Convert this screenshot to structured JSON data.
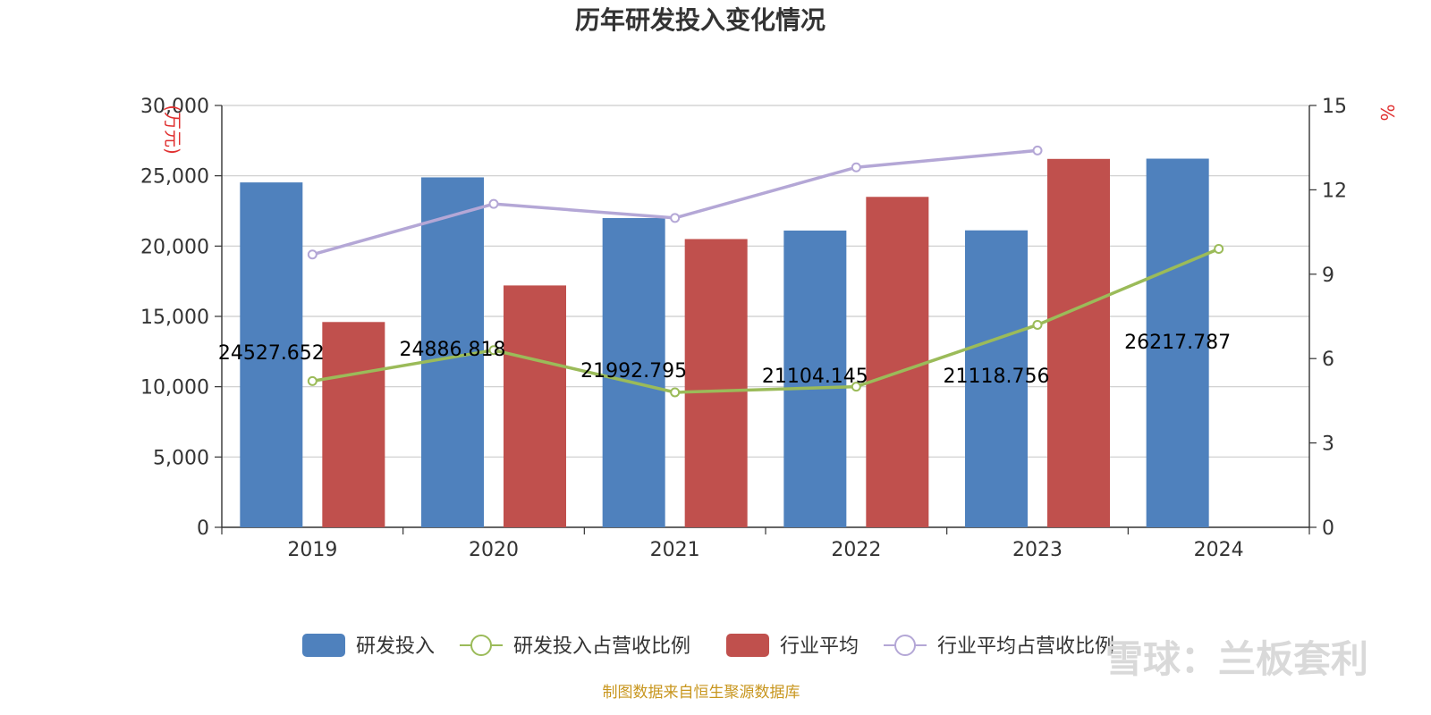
{
  "chart_data": {
    "type": "bar",
    "title": "历年研发投入变化情况",
    "categories": [
      "2019",
      "2020",
      "2021",
      "2022",
      "2023",
      "2024"
    ],
    "y_left": {
      "unit": "(万元)",
      "range": [
        0,
        30000
      ],
      "ticks": [
        0,
        5000,
        10000,
        15000,
        20000,
        25000,
        30000
      ],
      "tick_labels": [
        "0",
        "5,000",
        "10,000",
        "15,000",
        "20,000",
        "25,000",
        "30,000"
      ]
    },
    "y_right": {
      "unit": "%",
      "range": [
        0,
        15
      ],
      "ticks": [
        0,
        3,
        6,
        9,
        12,
        15
      ],
      "tick_labels": [
        "0",
        "3",
        "6",
        "9",
        "12",
        "15"
      ]
    },
    "grid": true,
    "legend_position": "bottom",
    "series": [
      {
        "name": "研发投入",
        "type": "bar",
        "axis": "left",
        "color": "#4f81bd",
        "values": [
          24527.652,
          24886.818,
          21992.795,
          21104.145,
          21118.756,
          26217.787
        ],
        "data_labels": [
          "24527.652",
          "24886.818",
          "21992.795",
          "21104.145",
          "21118.756",
          "26217.787"
        ]
      },
      {
        "name": "研发投入占营收比例",
        "type": "line",
        "axis": "right",
        "color": "#9bbb59",
        "values": [
          5.2,
          6.3,
          4.8,
          5.0,
          7.2,
          9.9
        ]
      },
      {
        "name": "行业平均",
        "type": "bar",
        "axis": "left",
        "color": "#c0504d",
        "values": [
          14600,
          17200,
          20500,
          23500,
          26200,
          null
        ]
      },
      {
        "name": "行业平均占营收比例",
        "type": "line",
        "axis": "right",
        "color": "#b4a7d6",
        "values": [
          9.7,
          11.5,
          11.0,
          12.8,
          13.4,
          null
        ]
      }
    ]
  },
  "footer": {
    "source": "制图数据来自恒生聚源数据库",
    "watermark": "雪球：兰板套利"
  }
}
